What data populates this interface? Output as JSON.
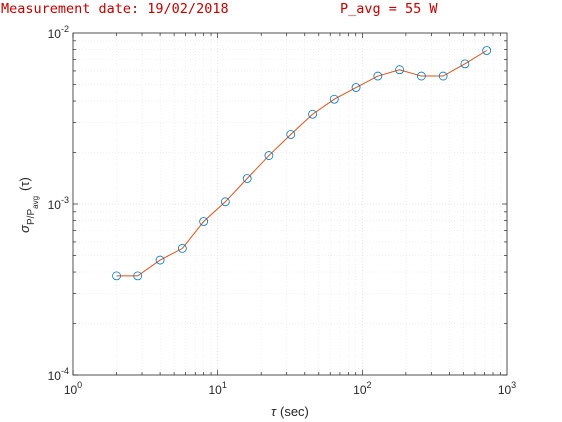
{
  "header": {
    "left_text": "Measurement date: 19/02/2018",
    "right_text": "P_avg = 55 W",
    "color": "#c00000"
  },
  "chart_data": {
    "type": "line",
    "xscale": "log",
    "yscale": "log",
    "xlim": [
      1,
      1000
    ],
    "ylim": [
      0.0001,
      0.01
    ],
    "x_ticks": [
      {
        "base": "10",
        "exp": "0"
      },
      {
        "base": "10",
        "exp": "1"
      },
      {
        "base": "10",
        "exp": "2"
      },
      {
        "base": "10",
        "exp": "3"
      }
    ],
    "y_ticks": [
      {
        "base": "10",
        "exp": "-4"
      },
      {
        "base": "10",
        "exp": "-3"
      },
      {
        "base": "10",
        "exp": "-2"
      }
    ],
    "xlabel": {
      "symbol": "τ",
      "text": "(sec)"
    },
    "ylabel": {
      "symbol": "σ",
      "sub": "P/P",
      "subsub": "avg",
      "arg": "(τ)"
    },
    "grid": true,
    "minor_grid": true,
    "line_color": "#d95319",
    "marker_color": "#0072bd",
    "marker": "circle",
    "series": [
      {
        "x": [
          2,
          2.8,
          4,
          5.7,
          8,
          11.3,
          16,
          22.6,
          32,
          45.3,
          64,
          90.5,
          128,
          181,
          256,
          362,
          512,
          724
        ],
        "values": [
          0.00038,
          0.00038,
          0.00047,
          0.00055,
          0.00079,
          0.00103,
          0.00141,
          0.00192,
          0.00255,
          0.00335,
          0.0041,
          0.0048,
          0.0056,
          0.0061,
          0.0056,
          0.0056,
          0.0066,
          0.0079
        ]
      }
    ]
  }
}
